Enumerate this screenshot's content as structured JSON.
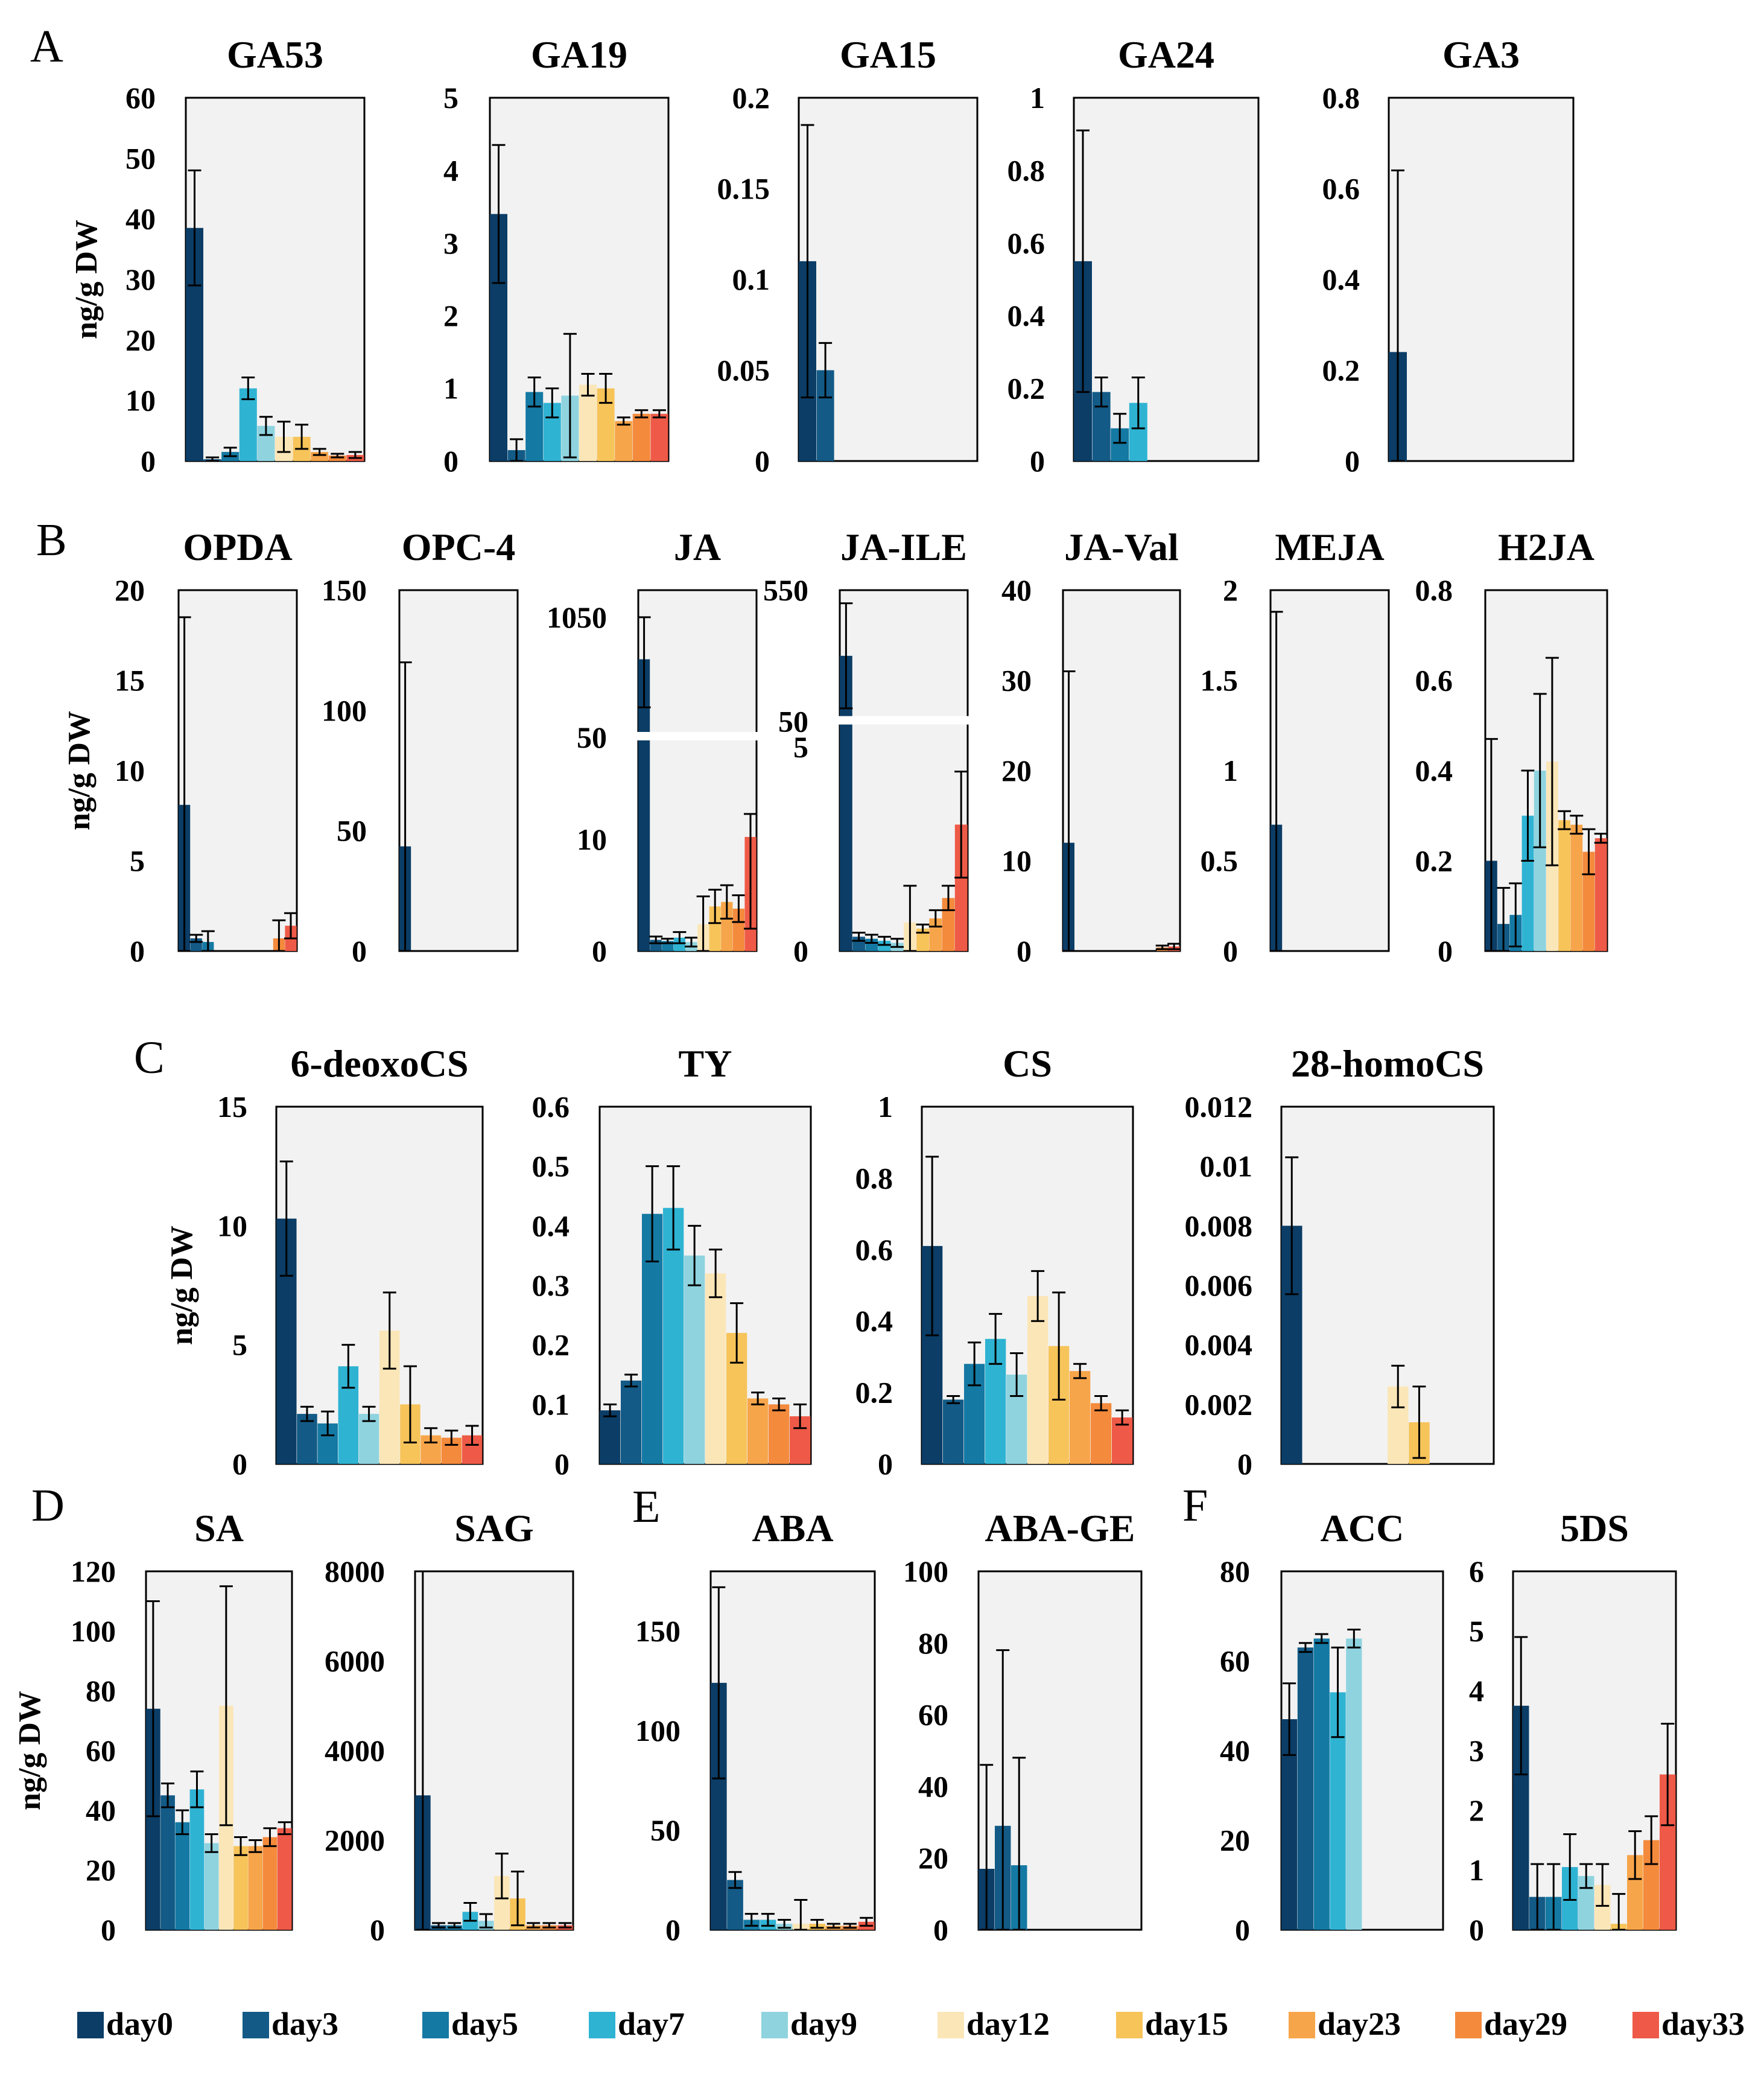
{
  "sections": [
    "A",
    "B",
    "C",
    "D",
    "E",
    "F"
  ],
  "y_axis_label": "ng/g DW",
  "legend": [
    {
      "label": "day0",
      "color": "#0b3d66"
    },
    {
      "label": "day3",
      "color": "#135a86"
    },
    {
      "label": "day5",
      "color": "#1479a3"
    },
    {
      "label": "day7",
      "color": "#2fb3d3"
    },
    {
      "label": "day9",
      "color": "#8fd3df"
    },
    {
      "label": "day12",
      "color": "#fbe6b8"
    },
    {
      "label": "day15",
      "color": "#f7c45a"
    },
    {
      "label": "day23",
      "color": "#f7a54a"
    },
    {
      "label": "day29",
      "color": "#f48a3c"
    },
    {
      "label": "day33",
      "color": "#ee5a47"
    }
  ],
  "chart_data": [
    {
      "id": "GA53",
      "section": "A",
      "type": "bar",
      "title": "GA53",
      "ylabel": "ng/g DW",
      "ylim": [
        0,
        60
      ],
      "ticks": [
        "0",
        "10",
        "20",
        "30",
        "40",
        "50",
        "60"
      ],
      "values": [
        38.5,
        0.3,
        1.5,
        12.0,
        5.8,
        4.0,
        4.0,
        1.5,
        0.9,
        1.0
      ],
      "errors": [
        9.5,
        0.3,
        0.7,
        1.8,
        1.5,
        2.5,
        2.0,
        0.5,
        0.3,
        0.5
      ]
    },
    {
      "id": "GA19",
      "section": "A",
      "type": "bar",
      "title": "GA19",
      "ylabel": "",
      "ylim": [
        0,
        5
      ],
      "ticks": [
        "0",
        "1",
        "2",
        "3",
        "4",
        "5"
      ],
      "values": [
        3.4,
        0.15,
        0.95,
        0.8,
        0.9,
        1.05,
        1.0,
        0.55,
        0.65,
        0.65
      ],
      "errors": [
        0.95,
        0.15,
        0.2,
        0.2,
        0.85,
        0.15,
        0.2,
        0.05,
        0.05,
        0.05
      ]
    },
    {
      "id": "GA15",
      "section": "A",
      "type": "bar",
      "title": "GA15",
      "ylabel": "",
      "ylim": [
        0,
        0.2
      ],
      "ticks": [
        "0",
        "0.05",
        "0.1",
        "0.15",
        "0.2"
      ],
      "values": [
        0.11,
        0.05,
        0,
        0,
        0,
        0,
        0,
        0,
        0,
        0
      ],
      "errors": [
        0.075,
        0.015,
        0,
        0,
        0,
        0,
        0,
        0,
        0,
        0
      ]
    },
    {
      "id": "GA24",
      "section": "A",
      "type": "bar",
      "title": "GA24",
      "ylabel": "",
      "ylim": [
        0,
        1
      ],
      "ticks": [
        "0",
        "0.2",
        "0.4",
        "0.6",
        "0.8",
        "1"
      ],
      "values": [
        0.55,
        0.19,
        0.09,
        0.16,
        0,
        0,
        0,
        0,
        0,
        0
      ],
      "errors": [
        0.36,
        0.04,
        0.04,
        0.07,
        0,
        0,
        0,
        0,
        0,
        0
      ]
    },
    {
      "id": "GA3",
      "section": "A",
      "type": "bar",
      "title": "GA3",
      "ylabel": "",
      "ylim": [
        0,
        0.8
      ],
      "ticks": [
        "0",
        "0.2",
        "0.4",
        "0.6",
        "0.8"
      ],
      "values": [
        0.24,
        0,
        0,
        0,
        0,
        0,
        0,
        0,
        0,
        0
      ],
      "errors": [
        0.4,
        0,
        0,
        0,
        0,
        0,
        0,
        0,
        0,
        0
      ]
    },
    {
      "id": "OPDA",
      "section": "B",
      "type": "bar",
      "title": "OPDA",
      "ylabel": "ng/g DW",
      "ylim": [
        0,
        20
      ],
      "ticks": [
        "0",
        "5",
        "10",
        "15",
        "20"
      ],
      "values": [
        8.1,
        0.7,
        0.5,
        0,
        0,
        0,
        0,
        0,
        0.7,
        1.4
      ],
      "errors": [
        10.4,
        0.2,
        0.6,
        0,
        0,
        0,
        0,
        0,
        1.0,
        0.7
      ]
    },
    {
      "id": "OPC-4",
      "section": "B",
      "type": "bar",
      "title": "OPC-4",
      "ylabel": "",
      "ylim": [
        0,
        150
      ],
      "ticks": [
        "0",
        "50",
        "100",
        "150"
      ],
      "values": [
        43.5,
        0,
        0,
        0,
        0,
        0,
        0,
        0,
        0,
        0
      ],
      "errors": [
        76.5,
        0,
        0,
        0,
        0,
        0,
        0,
        0,
        0,
        0
      ]
    },
    {
      "id": "JA",
      "section": "B",
      "type": "bar",
      "title": "JA",
      "ylabel": "",
      "broken": true,
      "ticks": [
        "0",
        "10",
        "50",
        "1050"
      ],
      "values": [
        700,
        1.0,
        0.9,
        1.2,
        0.8,
        2.4,
        4.0,
        4.4,
        3.8,
        11.0
      ],
      "errors": [
        400,
        0.3,
        0.2,
        0.5,
        0.4,
        2.5,
        1.5,
        1.5,
        1.2,
        9.0
      ]
    },
    {
      "id": "JA-ILE",
      "section": "B",
      "type": "bar",
      "title": "JA-ILE",
      "ylabel": "",
      "broken": true,
      "ticks": [
        "0",
        "5",
        "50",
        "550"
      ],
      "values": [
        300,
        0.35,
        0.3,
        0.25,
        0.2,
        0.7,
        0.55,
        0.8,
        1.3,
        3.1
      ],
      "errors": [
        200,
        0.1,
        0.1,
        0.1,
        0.1,
        0.9,
        0.1,
        0.2,
        0.3,
        1.3
      ]
    },
    {
      "id": "JA-Val",
      "section": "B",
      "type": "bar",
      "title": "JA-Val",
      "ylabel": "",
      "ylim": [
        0,
        40
      ],
      "ticks": [
        "0",
        "10",
        "20",
        "30",
        "40"
      ],
      "values": [
        12.0,
        0,
        0,
        0,
        0,
        0,
        0,
        0,
        0.4,
        0.5
      ],
      "errors": [
        19.0,
        0,
        0,
        0,
        0,
        0,
        0,
        0,
        0.2,
        0.3
      ]
    },
    {
      "id": "MEJA",
      "section": "B",
      "type": "bar",
      "title": "MEJA",
      "ylabel": "",
      "ylim": [
        0,
        2
      ],
      "ticks": [
        "0",
        "0.5",
        "1",
        "1.5",
        "2"
      ],
      "values": [
        0.7,
        0,
        0,
        0,
        0,
        0,
        0,
        0,
        0,
        0
      ],
      "errors": [
        1.18,
        0,
        0,
        0,
        0,
        0,
        0,
        0,
        0,
        0
      ]
    },
    {
      "id": "H2JA",
      "section": "B",
      "type": "bar",
      "title": "H2JA",
      "ylabel": "",
      "ylim": [
        0,
        0.8
      ],
      "ticks": [
        "0",
        "0.2",
        "0.4",
        "0.6",
        "0.8"
      ],
      "values": [
        0.2,
        0.06,
        0.08,
        0.3,
        0.4,
        0.42,
        0.29,
        0.28,
        0.22,
        0.25
      ],
      "errors": [
        0.27,
        0.08,
        0.07,
        0.1,
        0.17,
        0.23,
        0.02,
        0.02,
        0.05,
        0.01
      ]
    },
    {
      "id": "6-deoxoCS",
      "section": "C",
      "type": "bar",
      "title": "6-deoxoCS",
      "ylabel": "ng/g DW",
      "ylim": [
        0,
        15
      ],
      "ticks": [
        "0",
        "5",
        "10",
        "15"
      ],
      "values": [
        10.3,
        2.1,
        1.7,
        4.1,
        2.1,
        5.6,
        2.5,
        1.2,
        1.1,
        1.2
      ],
      "errors": [
        2.4,
        0.3,
        0.5,
        0.9,
        0.3,
        1.6,
        1.6,
        0.3,
        0.3,
        0.4
      ]
    },
    {
      "id": "TY",
      "section": "C",
      "type": "bar",
      "title": "TY",
      "ylabel": "",
      "ylim": [
        0,
        0.6
      ],
      "ticks": [
        "0",
        "0.1",
        "0.2",
        "0.3",
        "0.4",
        "0.5",
        "0.6"
      ],
      "values": [
        0.09,
        0.14,
        0.42,
        0.43,
        0.35,
        0.32,
        0.22,
        0.11,
        0.1,
        0.08
      ],
      "errors": [
        0.01,
        0.01,
        0.08,
        0.07,
        0.05,
        0.04,
        0.05,
        0.01,
        0.01,
        0.02
      ]
    },
    {
      "id": "CS",
      "section": "C",
      "type": "bar",
      "title": "CS",
      "ylabel": "",
      "ylim": [
        0,
        1
      ],
      "ticks": [
        "0",
        "0.2",
        "0.4",
        "0.6",
        "0.8",
        "1"
      ],
      "values": [
        0.61,
        0.18,
        0.28,
        0.35,
        0.25,
        0.47,
        0.33,
        0.26,
        0.17,
        0.13
      ],
      "errors": [
        0.25,
        0.01,
        0.06,
        0.07,
        0.06,
        0.07,
        0.15,
        0.02,
        0.02,
        0.02
      ]
    },
    {
      "id": "28-homoCS",
      "section": "C",
      "type": "bar",
      "title": "28-homoCS",
      "ylabel": "",
      "ylim": [
        0,
        0.012
      ],
      "ticks": [
        "0",
        "0.002",
        "0.004",
        "0.006",
        "0.008",
        "0.01",
        "0.012"
      ],
      "values": [
        0.008,
        0,
        0,
        0,
        0,
        0.0026,
        0.0014,
        0,
        0,
        0
      ],
      "errors": [
        0.0023,
        0,
        0,
        0,
        0,
        0.0007,
        0.0012,
        0,
        0,
        0
      ]
    },
    {
      "id": "SA",
      "section": "D",
      "type": "bar",
      "title": "SA",
      "ylabel": "ng/g DW",
      "ylim": [
        0,
        120
      ],
      "ticks": [
        "0",
        "20",
        "40",
        "60",
        "80",
        "100",
        "120"
      ],
      "values": [
        74,
        45,
        36,
        47,
        29,
        75,
        28,
        28,
        31,
        34
      ],
      "errors": [
        36,
        4,
        4,
        6,
        3,
        40,
        3,
        2,
        3,
        2
      ]
    },
    {
      "id": "SAG",
      "section": "D",
      "type": "bar",
      "title": "SAG",
      "ylabel": "",
      "ylim": [
        0,
        8000
      ],
      "ticks": [
        "0",
        "2000",
        "4000",
        "6000",
        "8000"
      ],
      "values": [
        3000,
        100,
        100,
        400,
        200,
        1200,
        700,
        100,
        100,
        100
      ],
      "errors": [
        5200,
        50,
        50,
        200,
        150,
        500,
        600,
        50,
        50,
        50
      ]
    },
    {
      "id": "ABA",
      "section": "E",
      "type": "bar",
      "title": "ABA",
      "ylabel": "",
      "ylim": [
        0,
        180
      ],
      "ticks": [
        "0",
        "50",
        "100",
        "150"
      ],
      "values": [
        124,
        25,
        5,
        5,
        3,
        3,
        3,
        2,
        2,
        4
      ],
      "errors": [
        48,
        4,
        3,
        3,
        2,
        12,
        2,
        1,
        1,
        2
      ]
    },
    {
      "id": "ABA-GE",
      "section": "E",
      "type": "bar",
      "title": "ABA-GE",
      "ylabel": "",
      "ylim": [
        0,
        100
      ],
      "ticks": [
        "0",
        "20",
        "40",
        "60",
        "80",
        "100"
      ],
      "values": [
        17,
        29,
        18,
        0,
        0,
        0,
        0,
        0,
        0,
        0
      ],
      "errors": [
        29,
        49,
        30,
        0,
        0,
        0,
        0,
        0,
        0,
        0
      ]
    },
    {
      "id": "ACC",
      "section": "F",
      "type": "bar",
      "title": "ACC",
      "ylabel": "",
      "ylim": [
        0,
        80
      ],
      "ticks": [
        "0",
        "20",
        "40",
        "60",
        "80"
      ],
      "values": [
        47,
        63,
        65,
        53,
        65,
        0,
        0,
        0,
        0,
        0
      ],
      "errors": [
        8,
        1,
        1,
        10,
        2,
        0,
        0,
        0,
        0,
        0
      ]
    },
    {
      "id": "5DS",
      "section": "F",
      "type": "bar",
      "title": "5DS",
      "ylabel": "",
      "ylim": [
        0,
        6
      ],
      "ticks": [
        "0",
        "1",
        "2",
        "3",
        "4",
        "5",
        "6"
      ],
      "values": [
        3.75,
        0.55,
        0.55,
        1.05,
        0.9,
        0.75,
        0.1,
        1.25,
        1.5,
        2.6
      ],
      "errors": [
        1.15,
        0.55,
        0.55,
        0.55,
        0.2,
        0.35,
        0.5,
        0.4,
        0.4,
        0.85
      ]
    }
  ]
}
